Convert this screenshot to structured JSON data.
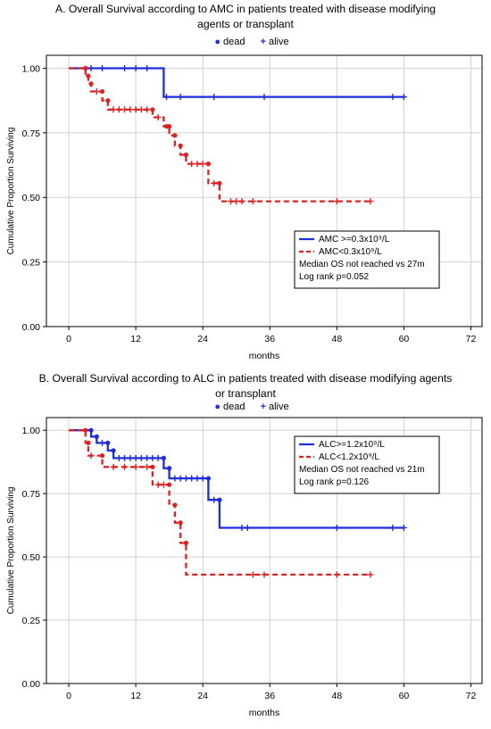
{
  "chart_data": [
    {
      "type": "line",
      "title": "A. Overall Survival according to AMC in patients treated with disease modifying agents or transplant",
      "title_lines": [
        "A. Overall Survival according to AMC in patients treated with disease modifying",
        "agents or transplant"
      ],
      "marker_legend": {
        "dead": "dead",
        "alive": "alive"
      },
      "xlabel": "months",
      "ylabel": "Cumulative Proportion Surviving",
      "xlim": [
        -4,
        74
      ],
      "ylim": [
        0,
        1.05
      ],
      "xticks": [
        "0",
        "12",
        "24",
        "36",
        "48",
        "60",
        "72"
      ],
      "yticks": [
        "0.00",
        "0.25",
        "0.50",
        "0.75",
        "1.00"
      ],
      "grid": true,
      "legend_lines": [
        "Median OS not reached vs 27m",
        "Log rank p=0.052"
      ],
      "series": [
        {
          "name": "AMC >=0.3x10⁹/L",
          "color": "#1f2de0",
          "dashed": false,
          "steps": [
            [
              0,
              1.0
            ],
            [
              17,
              1.0
            ],
            [
              17,
              0.889
            ],
            [
              60,
              0.889
            ]
          ],
          "dead": [],
          "alive": [
            4,
            6,
            10,
            12,
            14,
            17.5,
            20,
            26,
            35,
            58,
            60
          ]
        },
        {
          "name": "AMC<0.3x10⁹/L",
          "color": "#e02020",
          "dashed": true,
          "steps": [
            [
              0,
              1.0
            ],
            [
              3,
              1.0
            ],
            [
              3,
              0.97
            ],
            [
              3.5,
              0.97
            ],
            [
              3.5,
              0.94
            ],
            [
              4,
              0.94
            ],
            [
              4,
              0.91
            ],
            [
              6,
              0.91
            ],
            [
              6,
              0.875
            ],
            [
              7,
              0.875
            ],
            [
              7,
              0.84
            ],
            [
              15,
              0.84
            ],
            [
              15,
              0.81
            ],
            [
              17,
              0.81
            ],
            [
              17,
              0.775
            ],
            [
              18,
              0.775
            ],
            [
              18,
              0.74
            ],
            [
              19,
              0.74
            ],
            [
              19,
              0.7
            ],
            [
              20,
              0.7
            ],
            [
              20,
              0.665
            ],
            [
              21,
              0.665
            ],
            [
              21,
              0.63
            ],
            [
              25,
              0.63
            ],
            [
              25,
              0.555
            ],
            [
              27,
              0.555
            ],
            [
              27,
              0.485
            ],
            [
              54,
              0.485
            ]
          ],
          "dead": [
            3,
            3.5,
            4,
            6,
            7,
            15,
            17.5,
            18,
            19,
            20,
            21,
            25,
            27
          ],
          "alive": [
            5,
            8,
            9,
            10,
            11,
            12,
            13,
            14,
            16,
            22,
            23,
            24,
            26,
            29,
            30,
            31,
            33,
            48,
            54
          ]
        }
      ]
    },
    {
      "type": "line",
      "title": "B. Overall Survival according to ALC in patients treated with disease modifying agents or transplant",
      "title_lines": [
        "B. Overall Survival according to ALC in patients treated with disease modifying agents",
        "or transplant"
      ],
      "marker_legend": {
        "dead": "dead",
        "alive": "alive"
      },
      "xlabel": "months",
      "ylabel": "Cumulative Proportion Surviving",
      "xlim": [
        -4,
        74
      ],
      "ylim": [
        0,
        1.05
      ],
      "xticks": [
        "0",
        "12",
        "24",
        "36",
        "48",
        "60",
        "72"
      ],
      "yticks": [
        "0.00",
        "0.25",
        "0.50",
        "0.75",
        "1.00"
      ],
      "grid": true,
      "legend_lines": [
        "Median OS not reached vs 21m",
        "Log rank p=0.126"
      ],
      "series": [
        {
          "name": "ALC>=1.2x10⁹/L",
          "color": "#1f2de0",
          "dashed": false,
          "steps": [
            [
              0,
              1.0
            ],
            [
              4,
              1.0
            ],
            [
              4,
              0.975
            ],
            [
              5,
              0.975
            ],
            [
              5,
              0.95
            ],
            [
              7,
              0.95
            ],
            [
              7,
              0.92
            ],
            [
              8,
              0.92
            ],
            [
              8,
              0.89
            ],
            [
              17,
              0.89
            ],
            [
              17,
              0.85
            ],
            [
              18,
              0.85
            ],
            [
              18,
              0.81
            ],
            [
              25,
              0.81
            ],
            [
              25,
              0.725
            ],
            [
              27,
              0.725
            ],
            [
              27,
              0.615
            ],
            [
              60,
              0.615
            ]
          ],
          "dead": [
            4,
            5,
            7,
            8,
            17,
            18,
            25,
            27
          ],
          "alive": [
            6,
            9,
            10,
            11,
            12,
            13,
            14,
            15,
            16,
            19,
            20,
            21,
            22,
            23,
            24,
            26,
            31,
            32,
            48,
            58,
            60
          ]
        },
        {
          "name": "ALC<1.2x10⁹/L",
          "color": "#e02020",
          "dashed": true,
          "steps": [
            [
              0,
              1.0
            ],
            [
              3,
              1.0
            ],
            [
              3,
              0.95
            ],
            [
              3.5,
              0.95
            ],
            [
              3.5,
              0.9
            ],
            [
              6,
              0.9
            ],
            [
              6,
              0.855
            ],
            [
              15,
              0.855
            ],
            [
              15,
              0.785
            ],
            [
              18,
              0.785
            ],
            [
              18,
              0.705
            ],
            [
              19,
              0.705
            ],
            [
              19,
              0.635
            ],
            [
              20,
              0.635
            ],
            [
              20,
              0.555
            ],
            [
              21,
              0.555
            ],
            [
              21,
              0.43
            ],
            [
              54,
              0.43
            ]
          ],
          "dead": [
            3,
            3.5,
            6,
            15,
            18,
            19,
            20,
            21
          ],
          "alive": [
            4,
            8,
            10,
            12,
            14,
            16,
            17,
            33,
            35,
            48,
            54
          ]
        }
      ]
    }
  ]
}
